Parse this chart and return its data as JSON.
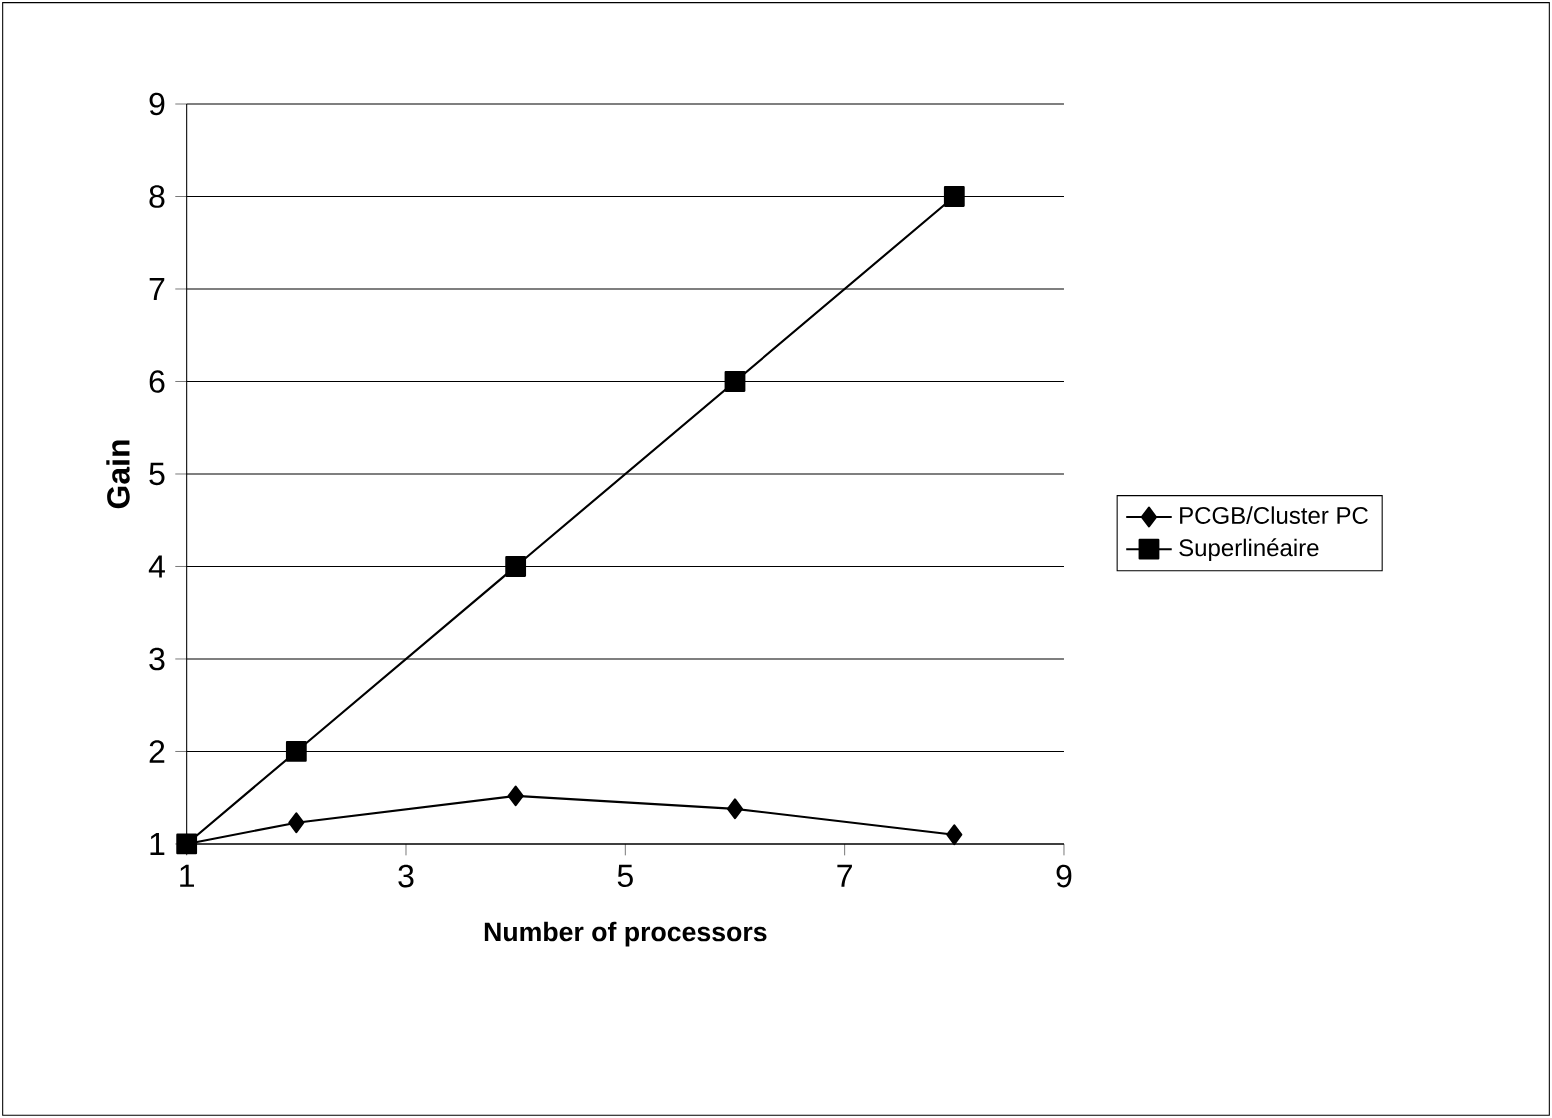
{
  "chart_data": {
    "type": "line",
    "xlabel": "Number of processors",
    "ylabel": "Gain",
    "x": [
      1,
      2,
      4,
      6,
      8
    ],
    "series": [
      {
        "name": "PCGB/Cluster PC",
        "color": "#000000",
        "marker": "diamond",
        "values": [
          1,
          1.23,
          1.52,
          1.38,
          1.1
        ]
      },
      {
        "name": "Superlinéaire",
        "color": "#000000",
        "marker": "square",
        "values": [
          1,
          2,
          4,
          6,
          8
        ]
      }
    ],
    "xlim": [
      1,
      9
    ],
    "xticks": [
      1,
      3,
      5,
      7,
      9
    ],
    "ylim": [
      1,
      9
    ],
    "yticks": [
      1,
      2,
      3,
      4,
      5,
      6,
      7,
      8,
      9
    ],
    "grid": "y",
    "legend": "right",
    "line_style": "solid"
  }
}
